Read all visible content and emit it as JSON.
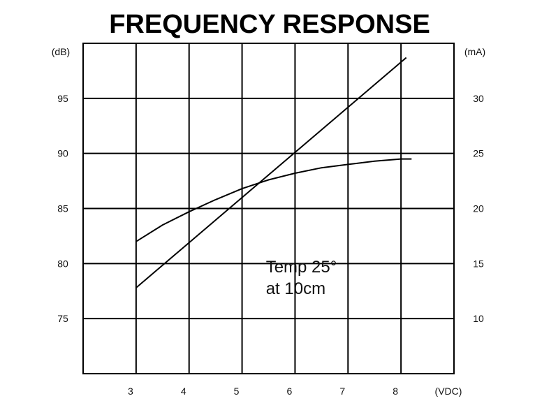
{
  "chart_data": {
    "type": "line",
    "title": "FREQUENCY RESPONSE",
    "xlabel": "(VDC)",
    "ylabel_left": "(dB)",
    "ylabel_right": "(mA)",
    "x_ticks": [
      "3",
      "4",
      "5",
      "6",
      "7",
      "8"
    ],
    "y_left_ticks": [
      "75",
      "80",
      "85",
      "90",
      "95"
    ],
    "y_right_ticks": [
      "10",
      "15",
      "20",
      "25",
      "30"
    ],
    "xlim": [
      2,
      9
    ],
    "ylim_left": [
      70,
      100
    ],
    "ylim_right": [
      5,
      35
    ],
    "grid": true,
    "series": [
      {
        "axis": "left",
        "x": [
          3,
          3.5,
          4,
          4.5,
          5,
          5.5,
          6,
          6.5,
          7,
          7.5,
          8,
          8.2
        ],
        "values": [
          82.0,
          83.5,
          84.7,
          85.8,
          86.8,
          87.6,
          88.2,
          88.7,
          89.0,
          89.3,
          89.5,
          89.5
        ]
      },
      {
        "axis": "right",
        "x": [
          3,
          8.1
        ],
        "values": [
          12.8,
          33.7
        ]
      }
    ],
    "annotation": {
      "lines": [
        "Temp 25°",
        "at 10cm"
      ],
      "x": 5.45,
      "y_left": 79.2
    }
  }
}
